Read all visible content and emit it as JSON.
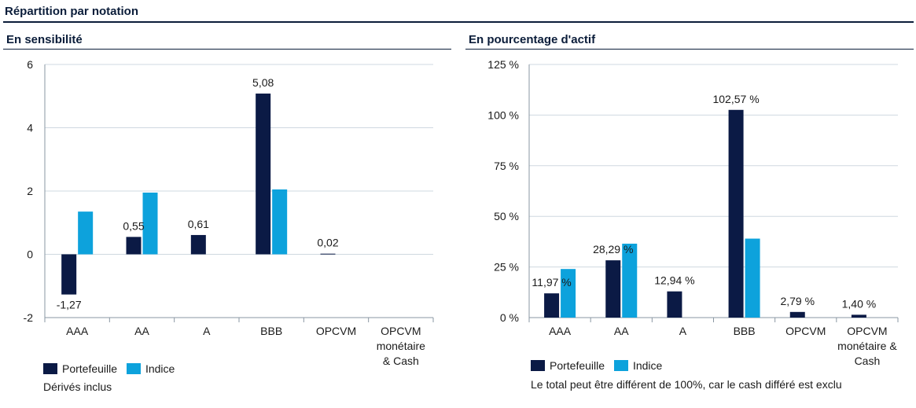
{
  "header": {
    "title": "Répartition par notation"
  },
  "colors": {
    "portefeuille": "#0b1a45",
    "indice": "#0da2dc",
    "grid": "#cfd8e0",
    "axis": "#8a97a3"
  },
  "chart_data": [
    {
      "type": "bar",
      "title": "En sensibilité",
      "categories": [
        "AAA",
        "AA",
        "A",
        "BBB",
        "OPCVM",
        "OPCVM monétaire & Cash"
      ],
      "category_lines": [
        [
          "AAA"
        ],
        [
          "AA"
        ],
        [
          "A"
        ],
        [
          "BBB"
        ],
        [
          "OPCVM"
        ],
        [
          "OPCVM",
          "monétaire",
          "&  Cash"
        ]
      ],
      "series": [
        {
          "name": "Portefeuille",
          "values": [
            -1.27,
            0.55,
            0.61,
            5.08,
            0.02,
            0
          ]
        },
        {
          "name": "Indice",
          "values": [
            1.35,
            1.95,
            0,
            2.05,
            0,
            0
          ]
        }
      ],
      "data_labels": [
        "-1,27",
        "0,55",
        "0,61",
        "5,08",
        "0,02",
        ""
      ],
      "y_ticks": [
        "6",
        "4",
        "2",
        "0",
        "-2"
      ],
      "ylim": [
        -2,
        6
      ],
      "legend": [
        "Portefeuille",
        "Indice"
      ],
      "note": "Dérivés inclus",
      "grid": true,
      "legend_position": "bottom-left"
    },
    {
      "type": "bar",
      "title": "En pourcentage d'actif",
      "categories": [
        "AAA",
        "AA",
        "A",
        "BBB",
        "OPCVM",
        "OPCVM monétaire & Cash"
      ],
      "category_lines": [
        [
          "AAA"
        ],
        [
          "AA"
        ],
        [
          "A"
        ],
        [
          "BBB"
        ],
        [
          "OPCVM"
        ],
        [
          "OPCVM",
          "monétaire &",
          "Cash"
        ]
      ],
      "series": [
        {
          "name": "Portefeuille",
          "values": [
            11.97,
            28.29,
            12.94,
            102.57,
            2.79,
            1.4
          ]
        },
        {
          "name": "Indice",
          "values": [
            24.0,
            36.5,
            0,
            39.0,
            0,
            0
          ]
        }
      ],
      "data_labels": [
        "11,97 %",
        "28,29 %",
        "12,94 %",
        "102,57 %",
        "2,79 %",
        "1,40 %"
      ],
      "y_ticks": [
        "125 %",
        "100 %",
        "75 %",
        "50 %",
        "25 %",
        "0 %"
      ],
      "ylim": [
        0,
        125
      ],
      "legend": [
        "Portefeuille",
        "Indice"
      ],
      "note": "Le total peut être différent de 100%, car le cash différé est exclu",
      "grid": true,
      "legend_position": "bottom-left"
    }
  ]
}
